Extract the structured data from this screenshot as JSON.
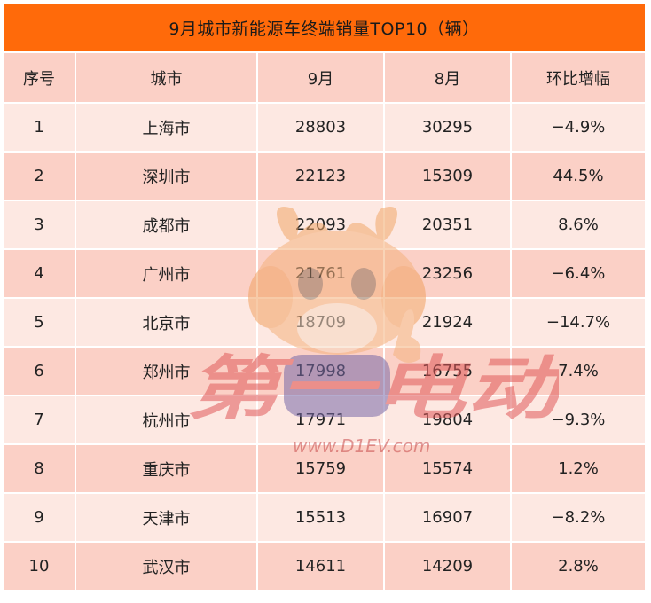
{
  "title": "9月城市新能源车终端销量TOP10（辆）",
  "columns": [
    "序号",
    "城市",
    "9月",
    "8月",
    "环比增幅"
  ],
  "rows": [
    [
      "1",
      "上海市",
      "28803",
      "30295",
      "−4.9%"
    ],
    [
      "2",
      "深圳市",
      "22123",
      "15309",
      "44.5%"
    ],
    [
      "3",
      "成都市",
      "22093",
      "20351",
      "8.6%"
    ],
    [
      "4",
      "广州市",
      "21761",
      "23256",
      "−6.4%"
    ],
    [
      "5",
      "北京市",
      "18709",
      "21924",
      "−14.7%"
    ],
    [
      "6",
      "郑州市",
      "17998",
      "16755",
      "7.4%"
    ],
    [
      "7",
      "杭州市",
      "17971",
      "19804",
      "−9.3%"
    ],
    [
      "8",
      "重庆市",
      "15759",
      "15574",
      "1.2%"
    ],
    [
      "9",
      "天津市",
      "15513",
      "16907",
      "−8.2%"
    ],
    [
      "10",
      "武汉市",
      "14611",
      "14209",
      "2.8%"
    ]
  ],
  "watermark": {
    "brand": "第一电动",
    "url": "www.D1EV.com"
  },
  "colors": {
    "title_bg": "#ff6a0a",
    "header_bg": "#fbd0c6",
    "row_light": "#fde8e2",
    "row_dark": "#fbd0c6"
  }
}
